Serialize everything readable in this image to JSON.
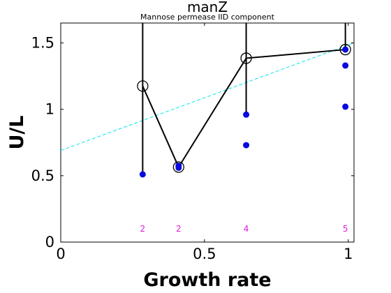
{
  "chart_data": {
    "type": "scatter",
    "title": "manZ",
    "subtitle": "Mannose permease IID component",
    "xlabel": "Growth rate",
    "ylabel": "U/L",
    "xlim": [
      0,
      1.02
    ],
    "ylim": [
      0,
      1.65
    ],
    "xticks": [
      0,
      0.5,
      1
    ],
    "yticks": [
      0,
      0.5,
      1,
      1.5
    ],
    "xtick_labels": [
      "0",
      "0.5",
      "1"
    ],
    "ytick_labels": [
      "0",
      "0.5",
      "1",
      "1.5"
    ],
    "colors": {
      "points": "#0a0adc",
      "mean_line": "#000000",
      "trend_line": "#00e5ee",
      "counts": "#d81bd8"
    },
    "samples": [
      {
        "x": 0.285,
        "y": 0.51
      },
      {
        "x": 0.41,
        "y": 0.56
      },
      {
        "x": 0.41,
        "y": 0.575
      },
      {
        "x": 0.645,
        "y": 0.96
      },
      {
        "x": 0.645,
        "y": 0.73
      },
      {
        "x": 0.99,
        "y": 1.45
      },
      {
        "x": 0.99,
        "y": 1.33
      },
      {
        "x": 0.99,
        "y": 1.02
      }
    ],
    "means": [
      {
        "x": 0.285,
        "y": 1.175,
        "n": "2"
      },
      {
        "x": 0.41,
        "y": 0.565,
        "n": "2"
      },
      {
        "x": 0.645,
        "y": 1.385,
        "n": "4"
      },
      {
        "x": 0.99,
        "y": 1.45,
        "n": "5"
      }
    ],
    "error_bars": [
      {
        "x": 0.285,
        "low": 0.51,
        "high": 1.65
      },
      {
        "x": 0.41,
        "low": 0.56,
        "high": 0.575
      },
      {
        "x": 0.645,
        "low": 0.96,
        "high": 1.65
      },
      {
        "x": 0.99,
        "low": 1.45,
        "high": 1.65
      }
    ],
    "trend": {
      "x": [
        0,
        1.02
      ],
      "y": [
        0.69,
        1.5
      ]
    },
    "count_y": 0.1
  }
}
